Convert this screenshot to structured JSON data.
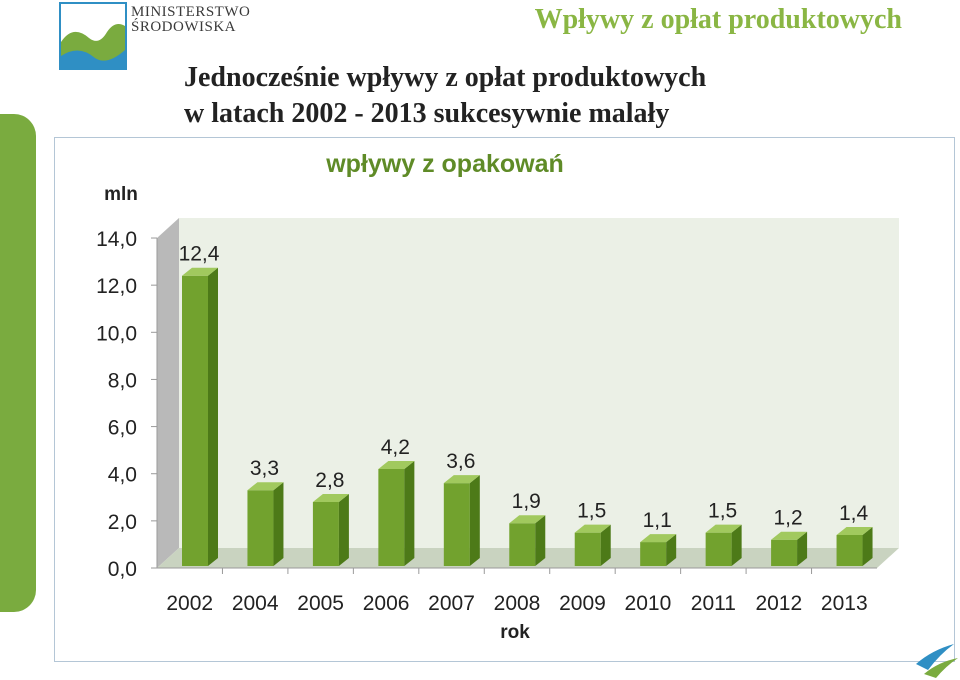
{
  "header": {
    "logo_line1": "MINISTERSTWO",
    "logo_line2": "ŚRODOWISKA",
    "title": "Wpływy z opłat produktowych"
  },
  "subtitle": {
    "line1": "Jednocześnie  wpływy  z  opłat  produktowych",
    "line2": "w latach 2002 - 2013 sukcesywnie malały"
  },
  "colors": {
    "accent": "#7aab3f",
    "title_green": "#8ab644",
    "chart_title": "#5f8b27",
    "bar_front": "#72a22e",
    "bar_side": "#4d7a18",
    "bar_top": "#a1c95e",
    "plot_back": "#ebf0e6",
    "plot_floor": "#c9d3c0",
    "logo_blue": "#2f8fc4"
  },
  "icons": {
    "logo": "ministry-logo-icon",
    "corner": "swoosh-icon"
  },
  "chart_data": {
    "type": "bar",
    "title": "wpływy z opakowań",
    "xlabel": "rok",
    "ylabel": "mln",
    "categories": [
      "2002",
      "2004",
      "2005",
      "2006",
      "2007",
      "2008",
      "2009",
      "2010",
      "2011",
      "2012",
      "2013"
    ],
    "values": [
      12.4,
      3.3,
      2.8,
      4.2,
      3.6,
      1.9,
      1.5,
      1.1,
      1.5,
      1.2,
      1.4
    ],
    "value_labels": [
      "12,4",
      "3,3",
      "2,8",
      "4,2",
      "3,6",
      "1,9",
      "1,5",
      "1,1",
      "1,5",
      "1,2",
      "1,4"
    ],
    "yticks": [
      0,
      2,
      4,
      6,
      8,
      10,
      12,
      14
    ],
    "ytick_labels": [
      "0,0",
      "2,0",
      "4,0",
      "6,0",
      "8,0",
      "10,0",
      "12,0",
      "14,0"
    ],
    "ylim": [
      0,
      14
    ],
    "grid": false,
    "legend": "none",
    "style": "3d"
  }
}
